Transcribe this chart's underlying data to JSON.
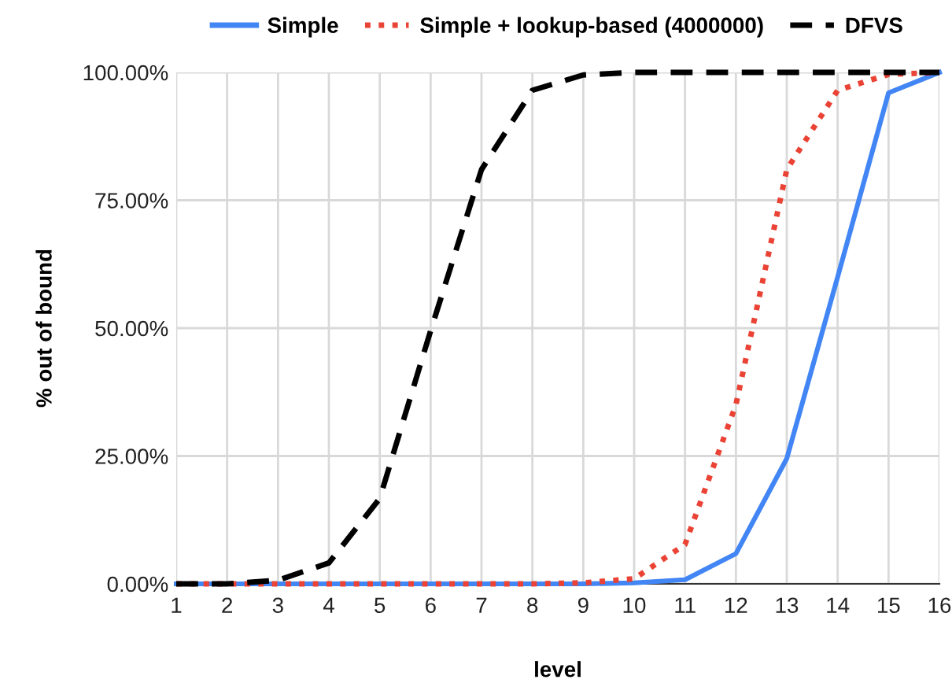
{
  "chart_data": {
    "type": "line",
    "xlabel": "level",
    "ylabel": "% out of bound",
    "categories": [
      "1",
      "2",
      "3",
      "4",
      "5",
      "6",
      "7",
      "8",
      "9",
      "10",
      "11",
      "12",
      "13",
      "14",
      "15",
      "16"
    ],
    "series": [
      {
        "name": "Simple",
        "color": "#4285f4",
        "line_style": "solid",
        "values": [
          0,
          0,
          0,
          0,
          0,
          0,
          0,
          0,
          0,
          0.2,
          0.8,
          5.9,
          24.5,
          60,
          96,
          100
        ]
      },
      {
        "name": "Simple + lookup-based (4000000)",
        "color": "#ea4335",
        "line_style": "dotted",
        "values": [
          0,
          0,
          0,
          0,
          0,
          0,
          0,
          0,
          0.2,
          1.0,
          7.7,
          35,
          81,
          96.5,
          99.6,
          100
        ]
      },
      {
        "name": "DFVS",
        "color": "#000000",
        "line_style": "dashed",
        "values": [
          0,
          0,
          0.7,
          4.1,
          16.7,
          49.5,
          81,
          96.5,
          99.5,
          100,
          100,
          100,
          100,
          100,
          100,
          100
        ]
      }
    ],
    "ylim": [
      0,
      100
    ],
    "yticks": [
      {
        "value": 0,
        "label": "0.00%"
      },
      {
        "value": 25,
        "label": "25.00%"
      },
      {
        "value": 50,
        "label": "50.00%"
      },
      {
        "value": 75,
        "label": "75.00%"
      },
      {
        "value": 100,
        "label": "100.00%"
      }
    ],
    "grid": true,
    "legend": "top",
    "marker": "none"
  }
}
